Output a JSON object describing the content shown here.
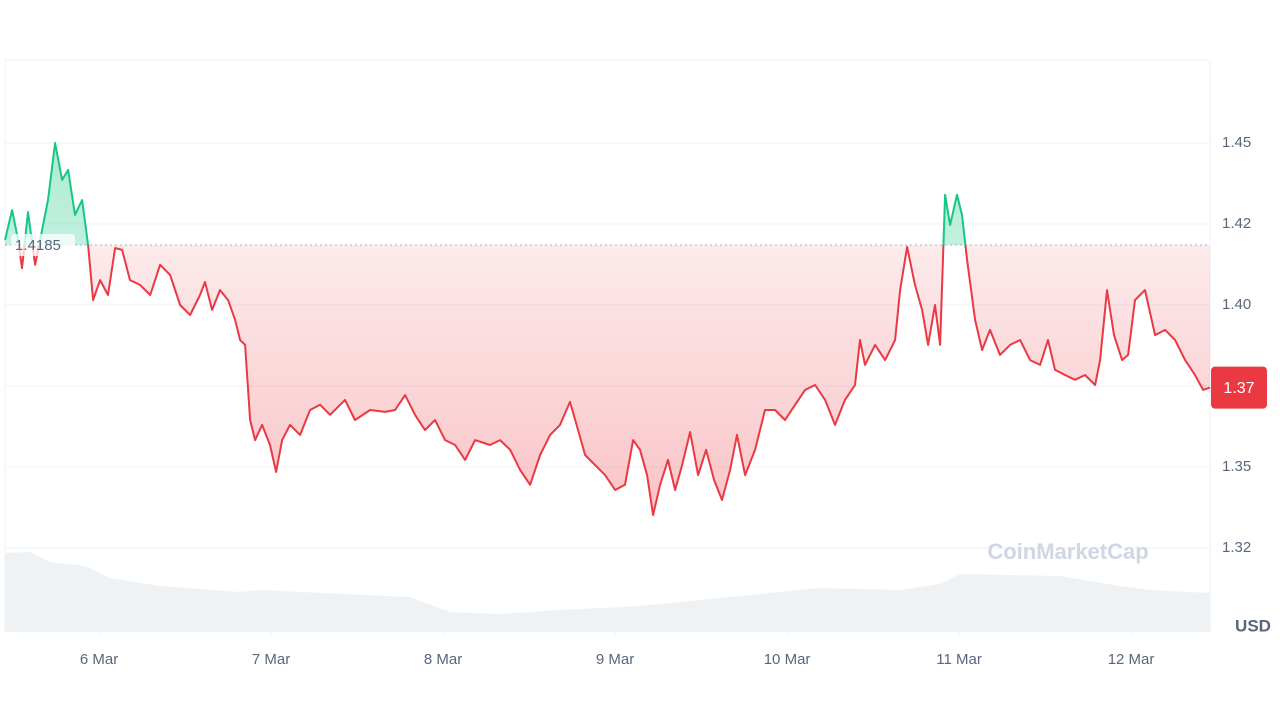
{
  "chart_data": {
    "type": "line",
    "x": [
      5.453,
      5.494,
      5.529,
      5.552,
      5.587,
      5.628,
      5.657,
      5.703,
      5.744,
      5.785,
      5.82,
      5.86,
      5.901,
      5.936,
      5.965,
      6.006,
      6.052,
      6.093,
      6.134,
      6.18,
      6.238,
      6.297,
      6.355,
      6.413,
      6.471,
      6.529,
      6.587,
      6.616,
      6.657,
      6.703,
      6.75,
      6.791,
      6.82,
      6.849,
      6.878,
      6.907,
      6.948,
      6.994,
      7.029,
      7.064,
      7.11,
      7.169,
      7.227,
      7.285,
      7.343,
      7.43,
      7.488,
      7.576,
      7.663,
      7.721,
      7.779,
      7.837,
      7.895,
      7.953,
      8.012,
      8.07,
      8.128,
      8.186,
      8.273,
      8.331,
      8.39,
      8.448,
      8.506,
      8.564,
      8.622,
      8.68,
      8.738,
      8.785,
      8.826,
      8.884,
      8.942,
      9.0,
      9.058,
      9.105,
      9.145,
      9.186,
      9.221,
      9.262,
      9.308,
      9.349,
      9.39,
      9.436,
      9.483,
      9.529,
      9.576,
      9.622,
      9.669,
      9.709,
      9.756,
      9.814,
      9.872,
      9.93,
      9.988,
      10.047,
      10.105,
      10.163,
      10.221,
      10.279,
      10.337,
      10.395,
      10.424,
      10.453,
      10.512,
      10.57,
      10.628,
      10.657,
      10.698,
      10.744,
      10.785,
      10.82,
      10.86,
      10.89,
      10.919,
      10.948,
      10.988,
      11.017,
      11.047,
      11.093,
      11.134,
      11.18,
      11.238,
      11.297,
      11.355,
      11.413,
      11.471,
      11.517,
      11.558,
      11.616,
      11.674,
      11.733,
      11.791,
      11.82,
      11.86,
      11.901,
      11.948,
      11.983,
      12.023,
      12.081,
      12.14,
      12.198,
      12.256,
      12.314,
      12.372,
      12.419,
      12.459
    ],
    "values": [
      1.4201,
      1.4293,
      1.4201,
      1.4114,
      1.4287,
      1.4124,
      1.4201,
      1.4324,
      1.45,
      1.4386,
      1.4417,
      1.4278,
      1.4324,
      1.4185,
      1.4015,
      1.4077,
      1.4031,
      1.4176,
      1.417,
      1.4077,
      1.4062,
      1.4031,
      1.4124,
      1.4093,
      1.4,
      1.3969,
      1.4031,
      1.4071,
      1.3985,
      1.4046,
      1.4015,
      1.3954,
      1.3892,
      1.3877,
      1.3645,
      1.3583,
      1.363,
      1.3568,
      1.3485,
      1.3583,
      1.363,
      1.3599,
      1.3676,
      1.3692,
      1.3661,
      1.3707,
      1.3645,
      1.3676,
      1.367,
      1.3676,
      1.3722,
      1.3661,
      1.3614,
      1.3645,
      1.3583,
      1.3568,
      1.3522,
      1.3583,
      1.3568,
      1.3583,
      1.3553,
      1.3491,
      1.3445,
      1.3537,
      1.3599,
      1.363,
      1.3701,
      1.3614,
      1.3537,
      1.3506,
      1.3475,
      1.3429,
      1.3445,
      1.3583,
      1.3553,
      1.3475,
      1.3352,
      1.3445,
      1.3522,
      1.3429,
      1.3506,
      1.3608,
      1.3475,
      1.3553,
      1.346,
      1.3398,
      1.3491,
      1.3599,
      1.3475,
      1.3553,
      1.3676,
      1.3676,
      1.3645,
      1.3692,
      1.3738,
      1.3753,
      1.3707,
      1.363,
      1.3707,
      1.3753,
      1.3892,
      1.3815,
      1.3877,
      1.383,
      1.3892,
      1.4046,
      1.4179,
      1.4062,
      1.3985,
      1.3877,
      1.4,
      1.3877,
      1.434,
      1.4247,
      1.434,
      1.4278,
      1.4139,
      1.3954,
      1.3861,
      1.3923,
      1.3846,
      1.3877,
      1.3892,
      1.383,
      1.3815,
      1.3892,
      1.38,
      1.3784,
      1.3769,
      1.3784,
      1.3753,
      1.383,
      1.4046,
      1.3907,
      1.383,
      1.3846,
      1.4015,
      1.4046,
      1.3907,
      1.3923,
      1.3892,
      1.383,
      1.3784,
      1.3738,
      1.3745
    ],
    "up_color": "#16c784",
    "down_color": "#ea3943",
    "xlim": [
      5.453,
      12.459
    ],
    "xticks": [
      {
        "value": 6,
        "label": "6 Mar"
      },
      {
        "value": 7,
        "label": "7 Mar"
      },
      {
        "value": 8,
        "label": "8 Mar"
      },
      {
        "value": 9,
        "label": "9 Mar"
      },
      {
        "value": 10,
        "label": "10 Mar"
      },
      {
        "value": 11,
        "label": "11 Mar"
      },
      {
        "value": 12,
        "label": "12 Mar"
      }
    ],
    "ylim": [
      1.3,
      1.475
    ],
    "yticks": [
      {
        "value": 1.325,
        "label": "1.32"
      },
      1.35,
      {
        "value": 1.375,
        "label": "1.37"
      },
      {
        "value": 1.4,
        "label": "1.40"
      },
      {
        "value": 1.425,
        "label": "1.42"
      },
      1.45
    ],
    "reference": 1.4185,
    "current_price": {
      "value": 1.3745,
      "label": "1.37"
    },
    "y_unit": "USD",
    "watermark": "CoinMarketCap",
    "grid": true
  }
}
